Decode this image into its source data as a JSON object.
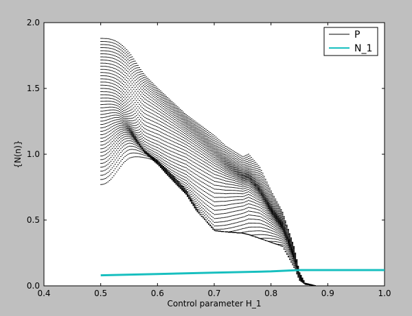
{
  "chart_data": {
    "type": "scatter",
    "xlabel": "Control parameter H_1",
    "ylabel": "{N(n)}",
    "xlim": [
      0.4,
      1.0
    ],
    "ylim": [
      0.0,
      2.0
    ],
    "xticks": [
      0.4,
      0.5,
      0.6,
      0.7,
      0.8,
      0.9,
      1.0
    ],
    "yticks": [
      0.0,
      0.5,
      1.0,
      1.5,
      2.0
    ],
    "xtick_labels": [
      "0.4",
      "0.5",
      "0.6",
      "0.7",
      "0.8",
      "0.9",
      "1.0"
    ],
    "ytick_labels": [
      "0.0",
      "0.5",
      "1.0",
      "1.5",
      "2.0"
    ],
    "grid": false,
    "legend": {
      "placement": "top-right",
      "entries": [
        "P",
        "N_1"
      ]
    },
    "colors": {
      "P": "#000000",
      "N_1": "#17bfbf",
      "background": "#bfbfbf",
      "axes": "#ffffff"
    },
    "series": [
      {
        "name": "P",
        "kind": "dotted-family",
        "family_note": "Many dotted black curves between x=0.5 and x=0.88; top envelope shown",
        "x": [
          0.5,
          0.55,
          0.6,
          0.65,
          0.7,
          0.72,
          0.75,
          0.76,
          0.78,
          0.8,
          0.82,
          0.84,
          0.85,
          0.86,
          0.88,
          0.9
        ],
        "top": [
          1.88,
          1.72,
          1.5,
          1.3,
          1.14,
          1.06,
          0.98,
          1.0,
          0.9,
          0.72,
          0.56,
          0.3,
          0.1,
          0.02,
          0.0,
          0.0
        ],
        "bottom": [
          0.77,
          0.78,
          0.76,
          0.66,
          0.42,
          0.41,
          0.4,
          0.39,
          0.36,
          0.33,
          0.3,
          0.14,
          0.04,
          0.01,
          0.0,
          0.0
        ]
      },
      {
        "name": "N_1",
        "kind": "line",
        "x": [
          0.5,
          0.6,
          0.7,
          0.8,
          0.85,
          0.9,
          1.0
        ],
        "y": [
          0.08,
          0.09,
          0.1,
          0.11,
          0.12,
          0.12,
          0.12
        ]
      }
    ]
  }
}
